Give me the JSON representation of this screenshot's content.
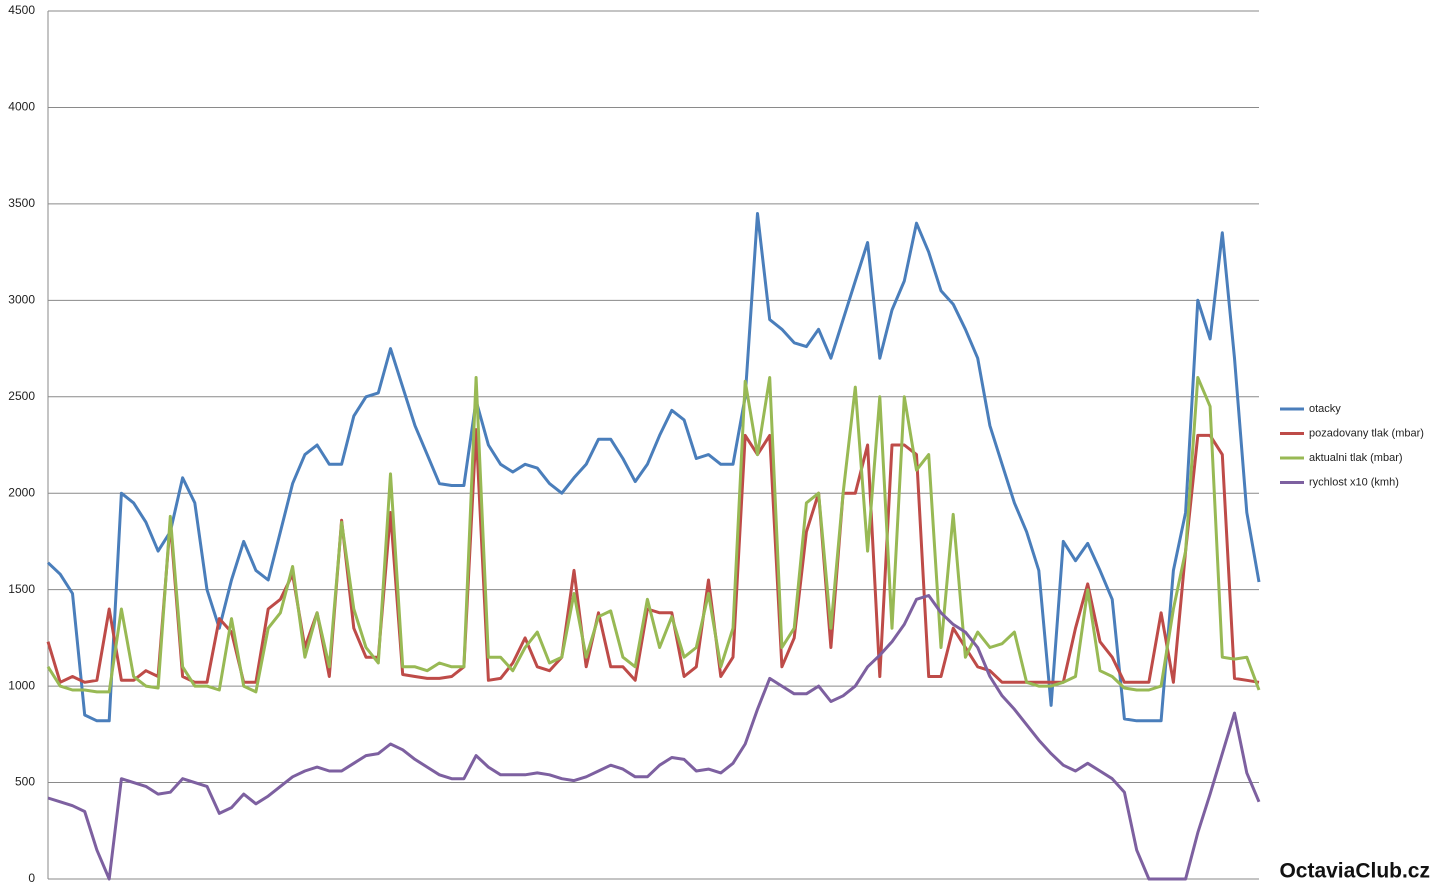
{
  "chart_data": {
    "type": "line",
    "ylim": [
      0,
      4500
    ],
    "yticks": [
      0,
      500,
      1000,
      1500,
      2000,
      2500,
      3000,
      3500,
      4000,
      4500
    ],
    "grid": true,
    "legend": "right",
    "series": [
      {
        "name": "otacky",
        "color": "#4a7ebb",
        "values": [
          1640,
          1580,
          1480,
          850,
          820,
          820,
          2000,
          1950,
          1850,
          1700,
          1800,
          2080,
          1950,
          1500,
          1300,
          1550,
          1750,
          1600,
          1550,
          1800,
          2050,
          2200,
          2250,
          2150,
          2150,
          2400,
          2500,
          2520,
          2750,
          2550,
          2350,
          2200,
          2050,
          2040,
          2040,
          2480,
          2250,
          2150,
          2110,
          2150,
          2130,
          2050,
          2000,
          2080,
          2150,
          2280,
          2280,
          2180,
          2060,
          2150,
          2300,
          2430,
          2380,
          2180,
          2200,
          2150,
          2150,
          2500,
          3450,
          2900,
          2850,
          2780,
          2760,
          2850,
          2700,
          2900,
          3100,
          3300,
          2700,
          2950,
          3100,
          3400,
          3250,
          3050,
          2980,
          2850,
          2700,
          2350,
          2150,
          1950,
          1800,
          1600,
          900,
          1750,
          1650,
          1740,
          1600,
          1450,
          830,
          820,
          820,
          820,
          1600,
          1900,
          3000,
          2800,
          3350,
          2700,
          1900,
          1540
        ]
      },
      {
        "name": "pozadovany tlak (mbar)",
        "color": "#be4b48",
        "values": [
          1230,
          1020,
          1050,
          1020,
          1030,
          1400,
          1030,
          1030,
          1080,
          1050,
          1850,
          1050,
          1020,
          1020,
          1350,
          1280,
          1020,
          1020,
          1400,
          1450,
          1580,
          1200,
          1380,
          1050,
          1860,
          1300,
          1150,
          1150,
          1900,
          1060,
          1050,
          1040,
          1040,
          1050,
          1100,
          2330,
          1030,
          1040,
          1120,
          1250,
          1100,
          1080,
          1150,
          1600,
          1100,
          1380,
          1100,
          1100,
          1030,
          1400,
          1380,
          1380,
          1050,
          1100,
          1550,
          1050,
          1150,
          2300,
          2200,
          2300,
          1100,
          1250,
          1800,
          2000,
          1200,
          2000,
          2000,
          2250,
          1050,
          2250,
          2250,
          2200,
          1050,
          1050,
          1300,
          1200,
          1100,
          1080,
          1020,
          1020,
          1020,
          1020,
          1020,
          1020,
          1300,
          1530,
          1230,
          1150,
          1020,
          1020,
          1020,
          1380,
          1020,
          1700,
          2300,
          2300,
          2200,
          1040,
          1030,
          1020
        ]
      },
      {
        "name": "aktualni tlak (mbar)",
        "color": "#98b954",
        "values": [
          1100,
          1000,
          980,
          980,
          970,
          970,
          1400,
          1050,
          1000,
          990,
          1880,
          1100,
          1000,
          1000,
          980,
          1350,
          1000,
          970,
          1300,
          1380,
          1620,
          1150,
          1380,
          1100,
          1850,
          1400,
          1200,
          1120,
          2100,
          1100,
          1100,
          1080,
          1120,
          1100,
          1100,
          2600,
          1150,
          1150,
          1080,
          1200,
          1280,
          1120,
          1150,
          1480,
          1150,
          1360,
          1390,
          1150,
          1100,
          1450,
          1200,
          1360,
          1150,
          1200,
          1480,
          1100,
          1300,
          2580,
          2200,
          2600,
          1200,
          1300,
          1950,
          2000,
          1300,
          2000,
          2550,
          1700,
          2500,
          1300,
          2500,
          2120,
          2200,
          1200,
          1890,
          1150,
          1280,
          1200,
          1220,
          1280,
          1020,
          1000,
          1000,
          1020,
          1050,
          1500,
          1080,
          1050,
          990,
          980,
          980,
          1000,
          1400,
          1700,
          2600,
          2450,
          1150,
          1140,
          1150,
          980
        ]
      },
      {
        "name": "rychlost x10 (kmh)",
        "color": "#7d60a0",
        "values": [
          420,
          400,
          380,
          350,
          150,
          0,
          520,
          500,
          480,
          440,
          450,
          520,
          500,
          480,
          340,
          370,
          440,
          390,
          430,
          480,
          530,
          560,
          580,
          560,
          560,
          600,
          640,
          650,
          700,
          670,
          620,
          580,
          540,
          520,
          520,
          640,
          580,
          540,
          540,
          540,
          550,
          540,
          520,
          510,
          530,
          560,
          590,
          570,
          530,
          530,
          590,
          630,
          620,
          560,
          570,
          550,
          600,
          700,
          880,
          1040,
          1000,
          960,
          960,
          1000,
          920,
          950,
          1000,
          1100,
          1160,
          1230,
          1320,
          1450,
          1470,
          1380,
          1320,
          1280,
          1200,
          1050,
          950,
          880,
          800,
          720,
          650,
          590,
          560,
          600,
          560,
          520,
          450,
          150,
          0,
          0,
          0,
          0,
          240,
          440,
          650,
          860,
          550,
          400
        ]
      }
    ]
  },
  "watermark": "OctaviaClub.cz"
}
